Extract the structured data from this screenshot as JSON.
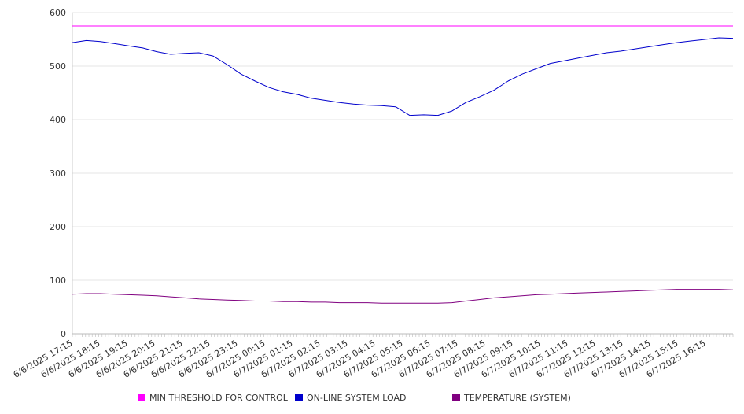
{
  "chart_data": {
    "type": "line",
    "grid": true,
    "legend_position": "bottom",
    "ylim": [
      0,
      600
    ],
    "y_ticks": [
      0,
      100,
      200,
      300,
      400,
      500,
      600
    ],
    "x_tick_labels": [
      "6/6/2025 17:15",
      "6/6/2025 18:15",
      "6/6/2025 19:15",
      "6/6/2025 20:15",
      "6/6/2025 21:15",
      "6/6/2025 22:15",
      "6/6/2025 23:15",
      "6/7/2025 00:15",
      "6/7/2025 01:15",
      "6/7/2025 02:15",
      "6/7/2025 03:15",
      "6/7/2025 04:15",
      "6/7/2025 05:15",
      "6/7/2025 06:15",
      "6/7/2025 07:15",
      "6/7/2025 08:15",
      "6/7/2025 09:15",
      "6/7/2025 10:15",
      "6/7/2025 11:15",
      "6/7/2025 12:15",
      "6/7/2025 13:15",
      "6/7/2025 14:15",
      "6/7/2025 15:15",
      "6/7/2025 16:15"
    ],
    "x": [
      "6/6/2025 17:15",
      "6/6/2025 17:45",
      "6/6/2025 18:15",
      "6/6/2025 18:45",
      "6/6/2025 19:15",
      "6/6/2025 19:45",
      "6/6/2025 20:15",
      "6/6/2025 20:45",
      "6/6/2025 21:15",
      "6/6/2025 21:45",
      "6/6/2025 22:15",
      "6/6/2025 22:45",
      "6/6/2025 23:15",
      "6/6/2025 23:45",
      "6/7/2025 00:15",
      "6/7/2025 00:45",
      "6/7/2025 01:15",
      "6/7/2025 01:45",
      "6/7/2025 02:15",
      "6/7/2025 02:45",
      "6/7/2025 03:15",
      "6/7/2025 03:45",
      "6/7/2025 04:15",
      "6/7/2025 04:45",
      "6/7/2025 05:15",
      "6/7/2025 05:45",
      "6/7/2025 06:15",
      "6/7/2025 06:45",
      "6/7/2025 07:15",
      "6/7/2025 07:45",
      "6/7/2025 08:15",
      "6/7/2025 08:45",
      "6/7/2025 09:15",
      "6/7/2025 09:45",
      "6/7/2025 10:15",
      "6/7/2025 10:45",
      "6/7/2025 11:15",
      "6/7/2025 11:45",
      "6/7/2025 12:15",
      "6/7/2025 12:45",
      "6/7/2025 13:15",
      "6/7/2025 13:45",
      "6/7/2025 14:15",
      "6/7/2025 14:45",
      "6/7/2025 15:15",
      "6/7/2025 15:45",
      "6/7/2025 16:15",
      "6/7/2025 16:45"
    ],
    "series": [
      {
        "name": "MIN THRESHOLD FOR CONTROL",
        "color": "#ff00ff",
        "values": [
          575,
          575,
          575,
          575,
          575,
          575,
          575,
          575,
          575,
          575,
          575,
          575,
          575,
          575,
          575,
          575,
          575,
          575,
          575,
          575,
          575,
          575,
          575,
          575,
          575,
          575,
          575,
          575,
          575,
          575,
          575,
          575,
          575,
          575,
          575,
          575,
          575,
          575,
          575,
          575,
          575,
          575,
          575,
          575,
          575,
          575,
          575,
          575
        ]
      },
      {
        "name": "ON-LINE SYSTEM LOAD",
        "color": "#0000cc",
        "values": [
          544,
          548,
          546,
          542,
          538,
          534,
          527,
          522,
          524,
          525,
          519,
          503,
          485,
          472,
          460,
          452,
          447,
          440,
          436,
          432,
          429,
          427,
          426,
          424,
          408,
          409,
          408,
          416,
          432,
          443,
          455,
          472,
          485,
          495,
          505,
          510,
          515,
          520,
          525,
          528,
          532,
          536,
          540,
          544,
          547,
          550,
          553,
          552
        ]
      },
      {
        "name": "TEMPERATURE (SYSTEM)",
        "color": "#800080",
        "values": [
          74,
          75,
          75,
          74,
          73,
          72,
          71,
          69,
          67,
          65,
          64,
          63,
          62,
          61,
          61,
          60,
          60,
          59,
          59,
          58,
          58,
          58,
          57,
          57,
          57,
          57,
          57,
          58,
          61,
          64,
          67,
          69,
          71,
          73,
          74,
          75,
          76,
          77,
          78,
          79,
          80,
          81,
          82,
          83,
          83,
          83,
          83,
          82
        ]
      }
    ]
  }
}
